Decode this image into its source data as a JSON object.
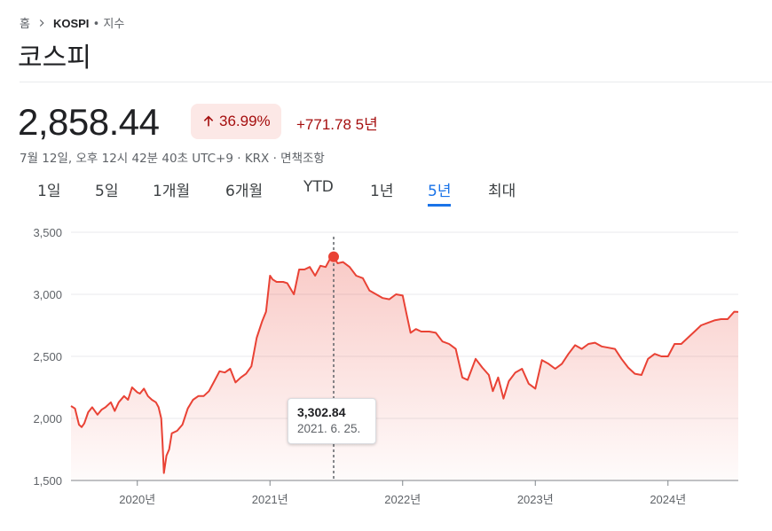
{
  "breadcrumb": {
    "home": "홈",
    "symbol": "KOSPI",
    "suffix": " • 지수"
  },
  "title": "코스피",
  "quote": {
    "price": "2,858.44",
    "percent": "36.99%",
    "change": "+771.78 5년",
    "meta": "7월 12일, 오후 12시 42분 40초 UTC+9 · KRX · 면책조항"
  },
  "colors": {
    "negative_red": "#a50e0e",
    "line": "#e94235",
    "accent_blue": "#1a73e8",
    "badge_bg": "#fce8e6"
  },
  "tabs": [
    {
      "label": "1일",
      "active": false
    },
    {
      "label": "5일",
      "active": false
    },
    {
      "label": "1개월",
      "active": false
    },
    {
      "label": "6개월",
      "active": false
    },
    {
      "label": "YTD",
      "active": false
    },
    {
      "label": "1년",
      "active": false
    },
    {
      "label": "5년",
      "active": true
    },
    {
      "label": "최대",
      "active": false
    }
  ],
  "tooltip": {
    "value": "3,302.84",
    "date": "2021. 6. 25."
  },
  "chart_data": {
    "type": "area",
    "y_ticks": [
      "3,500",
      "3,000",
      "2,500",
      "2,000",
      "1,500"
    ],
    "x_ticks": [
      "2020년",
      "2021년",
      "2022년",
      "2023년",
      "2024년"
    ],
    "ylim": [
      1500,
      3500
    ],
    "xlim": [
      2019.5,
      2024.53
    ],
    "grid": true,
    "highlight": {
      "x": 2021.48,
      "y": 3302.84
    },
    "x": [
      2019.5,
      2019.53,
      2019.56,
      2019.58,
      2019.6,
      2019.63,
      2019.66,
      2019.7,
      2019.73,
      2019.76,
      2019.8,
      2019.83,
      2019.86,
      2019.9,
      2019.93,
      2019.96,
      2020.0,
      2020.02,
      2020.05,
      2020.08,
      2020.11,
      2020.14,
      2020.16,
      2020.18,
      2020.19,
      2020.2,
      2020.22,
      2020.24,
      2020.26,
      2020.3,
      2020.34,
      2020.38,
      2020.42,
      2020.46,
      2020.5,
      2020.54,
      2020.58,
      2020.62,
      2020.66,
      2020.7,
      2020.74,
      2020.78,
      2020.82,
      2020.86,
      2020.9,
      2020.94,
      2020.97,
      2021.0,
      2021.02,
      2021.05,
      2021.1,
      2021.13,
      2021.18,
      2021.22,
      2021.26,
      2021.3,
      2021.34,
      2021.38,
      2021.42,
      2021.46,
      2021.48,
      2021.51,
      2021.55,
      2021.6,
      2021.65,
      2021.7,
      2021.75,
      2021.8,
      2021.85,
      2021.9,
      2021.95,
      2022.0,
      2022.03,
      2022.06,
      2022.1,
      2022.14,
      2022.2,
      2022.25,
      2022.3,
      2022.35,
      2022.4,
      2022.45,
      2022.49,
      2022.55,
      2022.6,
      2022.65,
      2022.68,
      2022.72,
      2022.76,
      2022.8,
      2022.85,
      2022.9,
      2022.95,
      2023.0,
      2023.05,
      2023.1,
      2023.15,
      2023.2,
      2023.25,
      2023.3,
      2023.35,
      2023.4,
      2023.45,
      2023.5,
      2023.55,
      2023.6,
      2023.65,
      2023.7,
      2023.75,
      2023.8,
      2023.85,
      2023.9,
      2023.95,
      2024.0,
      2024.05,
      2024.1,
      2024.15,
      2024.2,
      2024.25,
      2024.3,
      2024.35,
      2024.4,
      2024.45,
      2024.5,
      2024.53
    ],
    "y": [
      2100,
      2080,
      1950,
      1930,
      1960,
      2050,
      2090,
      2030,
      2070,
      2090,
      2130,
      2060,
      2130,
      2180,
      2150,
      2250,
      2210,
      2200,
      2240,
      2180,
      2150,
      2130,
      2090,
      2000,
      1800,
      1560,
      1700,
      1750,
      1880,
      1900,
      1950,
      2080,
      2150,
      2180,
      2180,
      2220,
      2300,
      2380,
      2370,
      2400,
      2290,
      2330,
      2360,
      2420,
      2650,
      2780,
      2860,
      3150,
      3120,
      3100,
      3100,
      3090,
      3000,
      3200,
      3200,
      3220,
      3150,
      3230,
      3220,
      3300,
      3302.84,
      3250,
      3260,
      3220,
      3150,
      3130,
      3030,
      3000,
      2970,
      2960,
      3000,
      2990,
      2840,
      2690,
      2720,
      2700,
      2700,
      2690,
      2620,
      2600,
      2560,
      2330,
      2310,
      2480,
      2410,
      2350,
      2220,
      2330,
      2160,
      2300,
      2370,
      2400,
      2280,
      2240,
      2470,
      2440,
      2400,
      2440,
      2520,
      2590,
      2560,
      2600,
      2610,
      2580,
      2570,
      2560,
      2480,
      2410,
      2360,
      2350,
      2480,
      2520,
      2500,
      2500,
      2600,
      2600,
      2650,
      2700,
      2750,
      2770,
      2790,
      2800,
      2800,
      2860,
      2858
    ]
  }
}
